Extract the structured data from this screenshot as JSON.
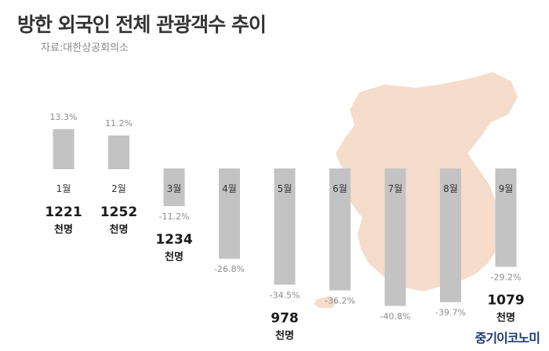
{
  "header": {
    "title": "방한 외국인 전체 관광객수 추이",
    "source": "자료:대한상공회의소"
  },
  "brand": "중기이코노미",
  "colors": {
    "bar": "#c3c3c3",
    "map": "#f5dccb",
    "pct_text": "#8c8c8c",
    "value_text": "#1a1a1a",
    "brand": "#1e3a78"
  },
  "chart_data": {
    "type": "bar",
    "title": "방한 외국인 전체 관광객수 추이",
    "xlabel": "",
    "ylabel": "",
    "ylim": [
      -45,
      15
    ],
    "categories": [
      "1월",
      "2월",
      "3월",
      "4월",
      "5월",
      "6월",
      "7월",
      "8월",
      "9월"
    ],
    "values": [
      13.3,
      11.2,
      -11.2,
      -26.8,
      -34.5,
      -36.2,
      -40.8,
      -39.7,
      -29.2
    ],
    "value_labels": [
      "13.3%",
      "11.2%",
      "-11.2%",
      "-26.8%",
      "-34.5%",
      "-36.2%",
      "-40.8%",
      "-39.7%",
      "-29.2%"
    ],
    "annotations": [
      {
        "category": "1월",
        "number": "1221",
        "unit": "천명"
      },
      {
        "category": "2월",
        "number": "1252",
        "unit": "천명"
      },
      {
        "category": "3월",
        "number": "1234",
        "unit": "천명"
      },
      {
        "category": "5월",
        "number": "978",
        "unit": "천명"
      },
      {
        "category": "9월",
        "number": "1079",
        "unit": "천명"
      }
    ],
    "grid": false,
    "legend": "none"
  }
}
